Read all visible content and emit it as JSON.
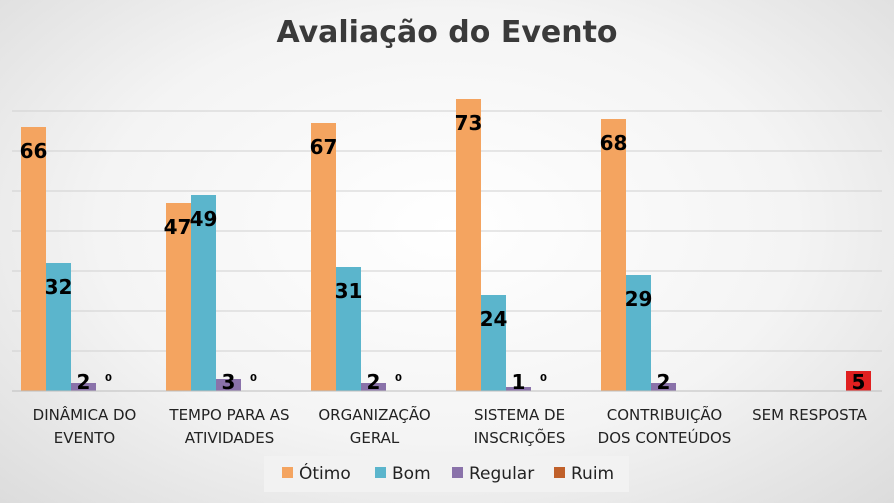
{
  "chart_data": {
    "type": "bar",
    "title": "Avaliação do Evento",
    "categories": [
      [
        "DINÂMICA DO",
        "EVENTO"
      ],
      [
        "TEMPO PARA AS",
        "ATIVIDADES"
      ],
      [
        "ORGANIZAÇÃO",
        "GERAL"
      ],
      [
        "SISTEMA DE",
        "INSCRIÇÕES"
      ],
      [
        "CONTRIBUIÇÃO",
        "DOS CONTEÚDOS"
      ],
      [
        "SEM RESPOSTA"
      ]
    ],
    "series": [
      {
        "name": "Ótimo",
        "color": "#f4a460",
        "values": [
          66,
          47,
          67,
          73,
          68,
          null
        ]
      },
      {
        "name": "Bom",
        "color": "#5bb5cc",
        "values": [
          32,
          49,
          31,
          24,
          29,
          null
        ]
      },
      {
        "name": "Regular",
        "color": "#8a72aa",
        "values": [
          2,
          3,
          2,
          1,
          2,
          null
        ]
      },
      {
        "name": "Ruim",
        "color": "#c0602a",
        "values": [
          0,
          0,
          0,
          0,
          null,
          5
        ]
      }
    ],
    "ylim": [
      0,
      75
    ],
    "grid": true,
    "legend": "bottom"
  }
}
